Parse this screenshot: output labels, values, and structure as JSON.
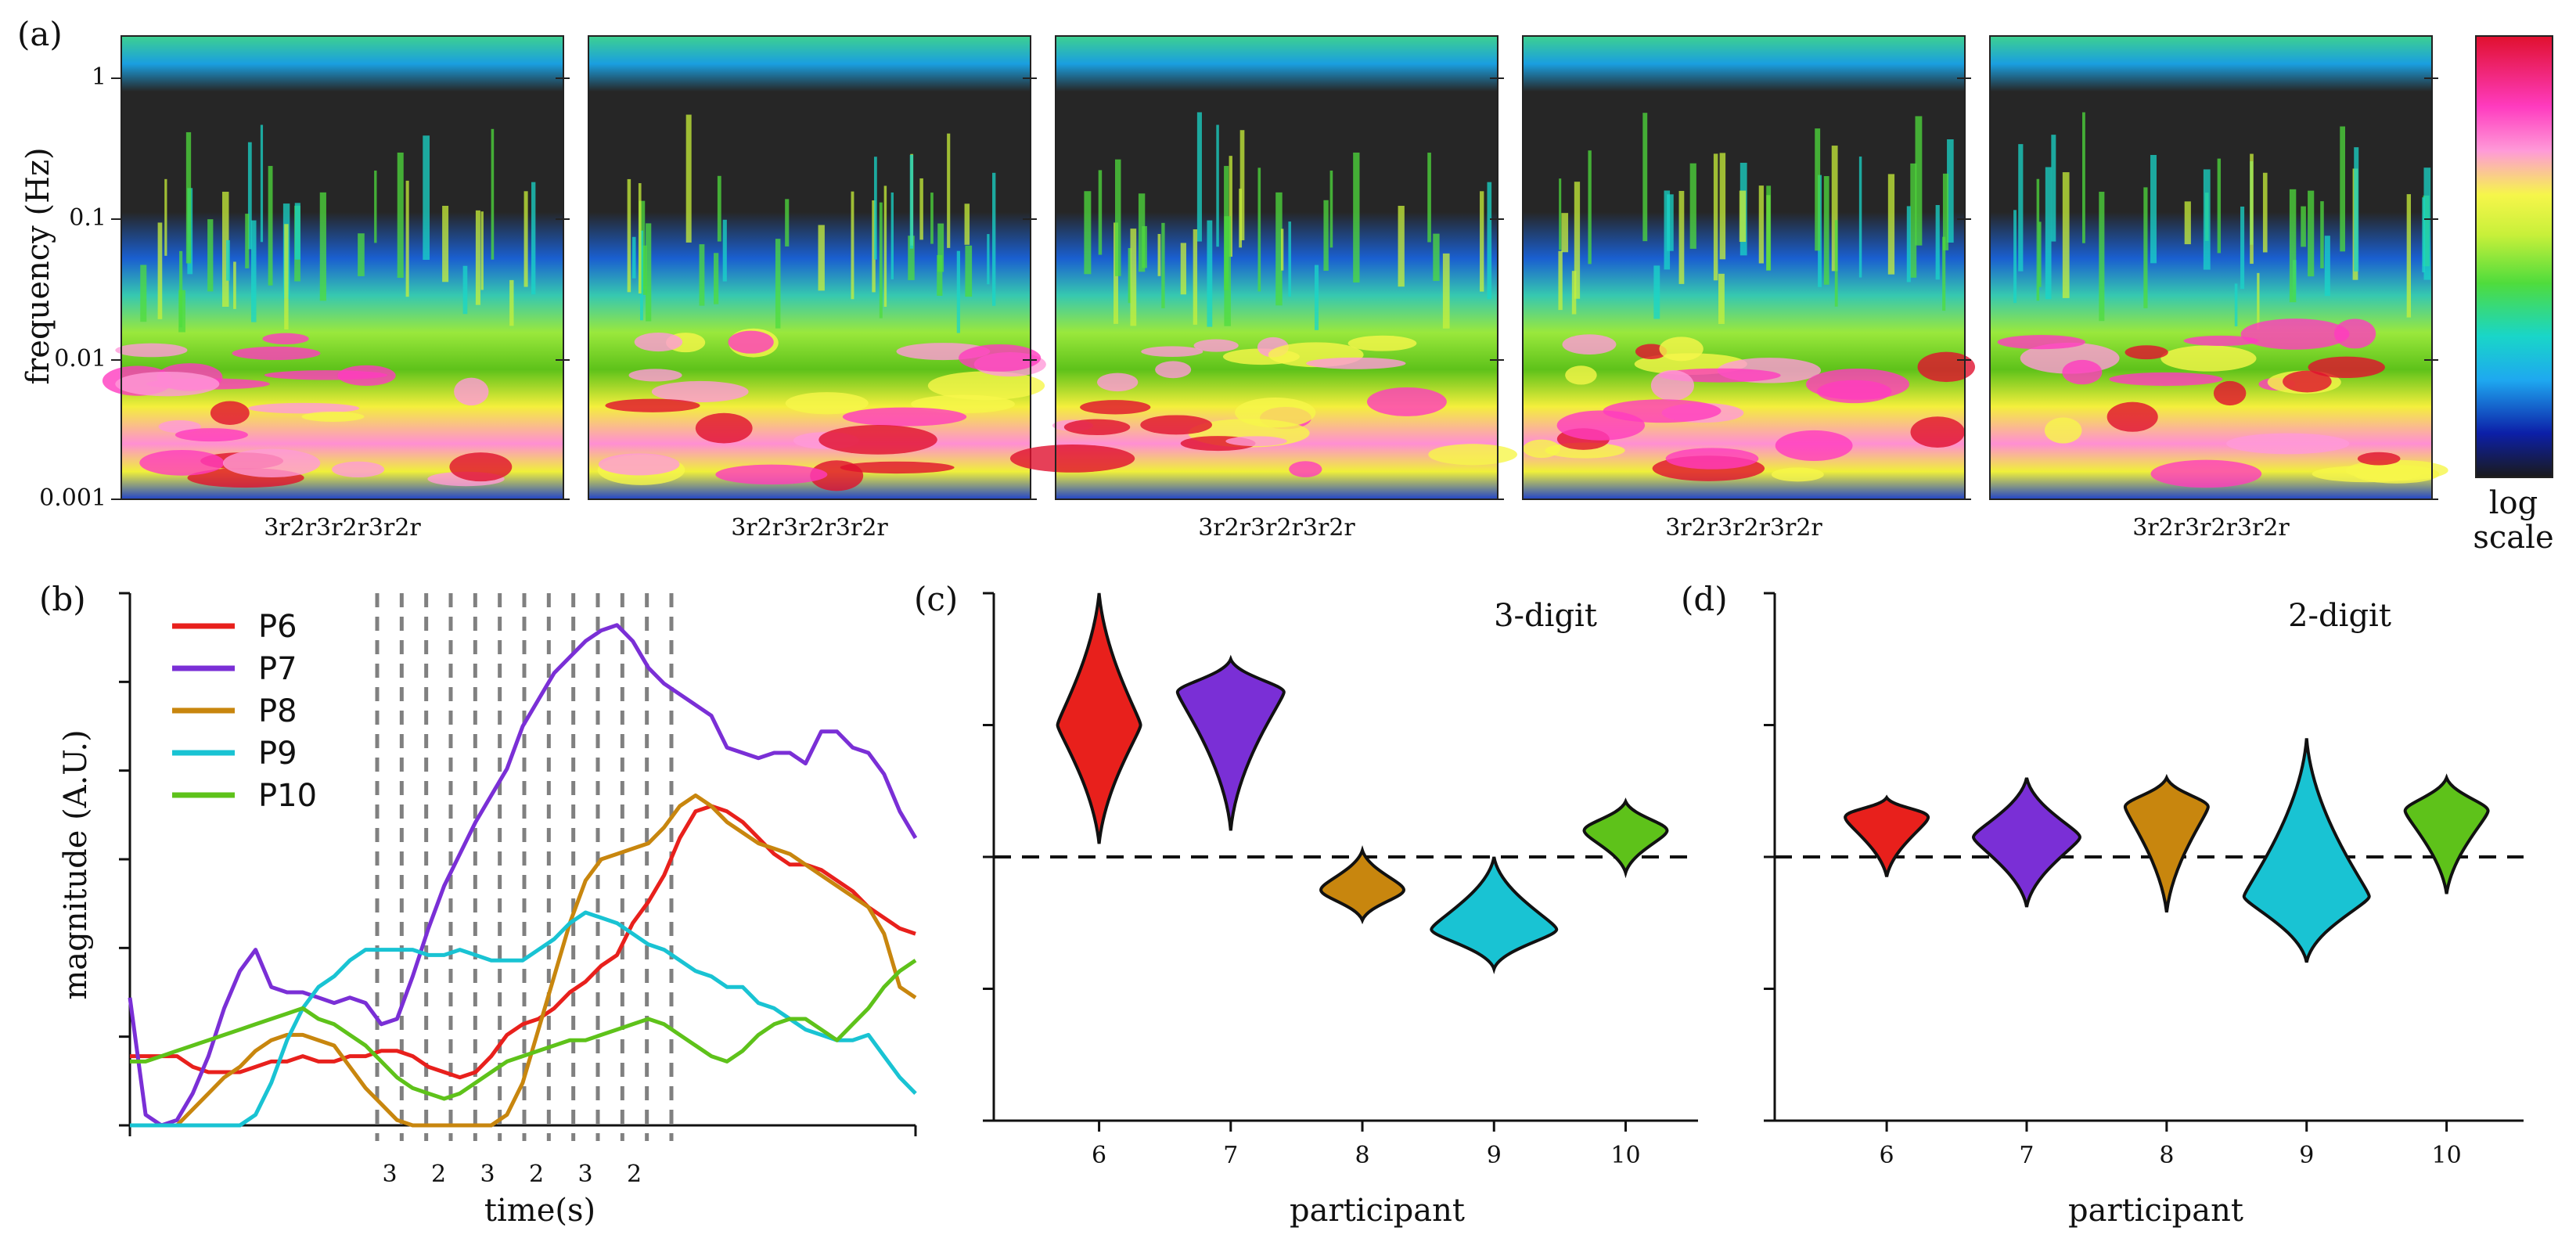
{
  "panel_labels": [
    "(a)",
    "(b)",
    "(c)",
    "(d)"
  ],
  "colors": {
    "P6": "#e8201c",
    "P7": "#7a2fd6",
    "P8": "#c8860e",
    "P9": "#19c3d3",
    "P10": "#5ec21a"
  },
  "panel_a": {
    "ylabel": "frequency (Hz)",
    "yticks": [
      "1",
      "0.1",
      "0.01",
      "0.001"
    ],
    "sequence_label": "3r2r3r2r3r2r",
    "num_spectrograms": 5,
    "colorbar_label_line1": "log",
    "colorbar_label_line2": "scale",
    "colormap": [
      "#1a1a1a",
      "#0c1fa8",
      "#1ea8f0",
      "#19d6c8",
      "#4fdc3c",
      "#c8f03a",
      "#f6f64a",
      "#ff9ad8",
      "#ff3bbf",
      "#e0102e"
    ]
  },
  "chart_data": [
    {
      "panel": "(b)",
      "type": "line",
      "xlabel": "time(s)",
      "ylabel": "magnitude (A.U.)",
      "x_tick_labels": [
        "3",
        "2",
        "3",
        "2",
        "3",
        "2"
      ],
      "legend": [
        "P6",
        "P7",
        "P8",
        "P9",
        "P10"
      ],
      "legend_placement": "top-left",
      "x": [
        0,
        2,
        4,
        6,
        8,
        10,
        12,
        14,
        16,
        18,
        20,
        22,
        24,
        26,
        28,
        30,
        32,
        34,
        36,
        38,
        40,
        42,
        44,
        46,
        48,
        50,
        52,
        54,
        56,
        58,
        60,
        62,
        64,
        66,
        68,
        70,
        72,
        74,
        76,
        78,
        80,
        82,
        84,
        86,
        88,
        90,
        92,
        94,
        96,
        98,
        100
      ],
      "ylim": [
        0,
        100
      ],
      "series": [
        {
          "name": "P6",
          "values": [
            13,
            13,
            13,
            13,
            11,
            10,
            10,
            10,
            11,
            12,
            12,
            13,
            12,
            12,
            13,
            13,
            14,
            14,
            13,
            11,
            10,
            9,
            10,
            13,
            17,
            19,
            20,
            22,
            25,
            27,
            30,
            32,
            38,
            42,
            47,
            54,
            59,
            60,
            59,
            57,
            54,
            51,
            49,
            49,
            48,
            46,
            44,
            41,
            39,
            37,
            36
          ]
        },
        {
          "name": "P7",
          "values": [
            24,
            2,
            0,
            1,
            6,
            13,
            22,
            29,
            33,
            26,
            25,
            25,
            24,
            23,
            24,
            23,
            19,
            20,
            28,
            37,
            45,
            51,
            57,
            62,
            67,
            75,
            80,
            85,
            88,
            91,
            93,
            94,
            91,
            86,
            83,
            81,
            79,
            77,
            71,
            70,
            69,
            70,
            70,
            68,
            74,
            74,
            71,
            70,
            66,
            59,
            54
          ]
        },
        {
          "name": "P8",
          "values": [
            0,
            0,
            0,
            0,
            3,
            6,
            9,
            11,
            14,
            16,
            17,
            17,
            16,
            15,
            11,
            7,
            4,
            1,
            0,
            0,
            0,
            0,
            0,
            0,
            2,
            8,
            18,
            28,
            38,
            46,
            50,
            51,
            52,
            53,
            56,
            60,
            62,
            60,
            57,
            55,
            53,
            52,
            51,
            49,
            47,
            45,
            43,
            41,
            36,
            26,
            24
          ]
        },
        {
          "name": "P9",
          "values": [
            0,
            0,
            0,
            0,
            0,
            0,
            0,
            0,
            2,
            8,
            16,
            22,
            26,
            28,
            31,
            33,
            33,
            33,
            33,
            32,
            32,
            33,
            32,
            31,
            31,
            31,
            33,
            35,
            38,
            40,
            39,
            38,
            36,
            34,
            33,
            31,
            29,
            28,
            26,
            26,
            23,
            22,
            20,
            18,
            17,
            16,
            16,
            17,
            13,
            9,
            6
          ]
        },
        {
          "name": "P10",
          "values": [
            12,
            12,
            13,
            14,
            15,
            16,
            17,
            18,
            19,
            20,
            21,
            22,
            20,
            19,
            17,
            15,
            12,
            9,
            7,
            6,
            5,
            6,
            8,
            10,
            12,
            13,
            14,
            15,
            16,
            16,
            17,
            18,
            19,
            20,
            19,
            17,
            15,
            13,
            12,
            14,
            17,
            19,
            20,
            20,
            18,
            16,
            19,
            22,
            26,
            29,
            31
          ]
        }
      ]
    },
    {
      "panel": "(c)",
      "type": "violin",
      "title": "3-digit",
      "xlabel": "participant",
      "categories": [
        "6",
        "7",
        "8",
        "9",
        "10"
      ],
      "reference_line": 0,
      "ylim": [
        -2,
        2
      ],
      "series": [
        {
          "name": "6",
          "median": 1.0,
          "min": 0.1,
          "max": 2.0
        },
        {
          "name": "7",
          "median": 1.25,
          "min": 0.2,
          "max": 1.5
        },
        {
          "name": "8",
          "median": -0.25,
          "min": -0.48,
          "max": 0.05
        },
        {
          "name": "9",
          "median": -0.55,
          "min": -0.85,
          "max": 0.0
        },
        {
          "name": "10",
          "median": 0.2,
          "min": -0.12,
          "max": 0.42
        }
      ]
    },
    {
      "panel": "(d)",
      "type": "violin",
      "title": "2-digit",
      "xlabel": "participant",
      "categories": [
        "6",
        "7",
        "8",
        "9",
        "10"
      ],
      "reference_line": 0,
      "ylim": [
        -2,
        2
      ],
      "series": [
        {
          "name": "6",
          "median": 0.3,
          "min": -0.15,
          "max": 0.45
        },
        {
          "name": "7",
          "median": 0.15,
          "min": -0.38,
          "max": 0.6
        },
        {
          "name": "8",
          "median": 0.38,
          "min": -0.42,
          "max": 0.6
        },
        {
          "name": "9",
          "median": -0.3,
          "min": -0.8,
          "max": 0.9
        },
        {
          "name": "10",
          "median": 0.35,
          "min": -0.28,
          "max": 0.6
        }
      ]
    }
  ]
}
